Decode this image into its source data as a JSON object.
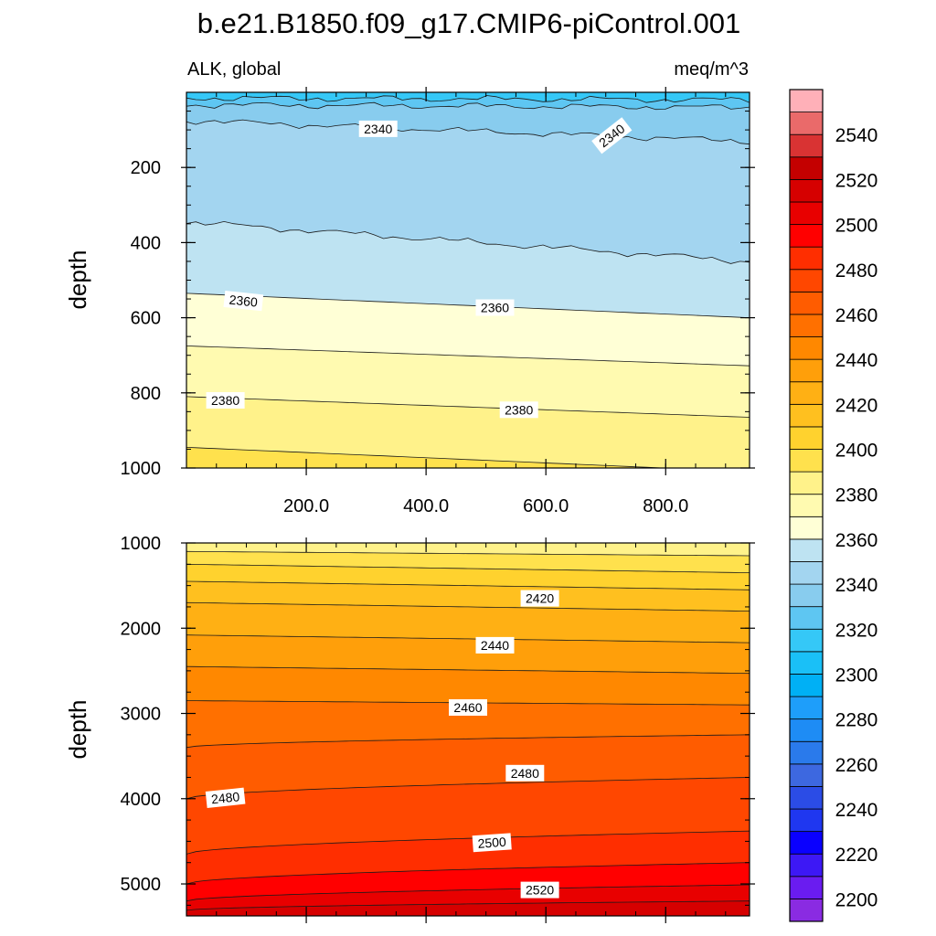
{
  "chart_data": {
    "type": "contour",
    "title": "b.e21.B1850.f09_g17.CMIP6-piControl.001",
    "variable_label": "ALK, global",
    "units_label": "meq/m^3",
    "x_range": [
      0,
      940
    ],
    "x_ticks": [
      200,
      400,
      600,
      800
    ],
    "x_tick_labels": [
      "200.0",
      "400.0",
      "600.0",
      "800.0"
    ],
    "colorbar": {
      "levels": [
        2200,
        2210,
        2220,
        2230,
        2240,
        2250,
        2260,
        2270,
        2280,
        2290,
        2300,
        2310,
        2320,
        2330,
        2340,
        2350,
        2360,
        2370,
        2380,
        2390,
        2400,
        2410,
        2420,
        2430,
        2440,
        2450,
        2460,
        2470,
        2480,
        2490,
        2500,
        2510,
        2520,
        2530,
        2540,
        2550
      ],
      "colors": [
        "#8A2BE2",
        "#6A1CF0",
        "#3D18F5",
        "#0A00FF",
        "#1F37F0",
        "#2B4CE6",
        "#3D68E0",
        "#2A7AEB",
        "#1E8CF5",
        "#1E9EFA",
        "#00B0F5",
        "#1AC0F7",
        "#35C8F7",
        "#5EC6F2",
        "#88CCEE",
        "#A3D5F0",
        "#BEE3F2",
        "#FFFFD6",
        "#FFFAB0",
        "#FFF28A",
        "#FFE14D",
        "#FFD22E",
        "#FFC01F",
        "#FFB014",
        "#FF9F0A",
        "#FF8800",
        "#FF7000",
        "#FF5C00",
        "#FF4700",
        "#FF2E00",
        "#FF0000",
        "#E80000",
        "#D60000",
        "#C40000",
        "#D93333",
        "#EA6A6A",
        "#FFB0B8"
      ],
      "tick_labels": [
        "2200",
        "2220",
        "2240",
        "2260",
        "2280",
        "2300",
        "2320",
        "2340",
        "2360",
        "2380",
        "2400",
        "2420",
        "2440",
        "2460",
        "2480",
        "2500",
        "2520",
        "2540"
      ]
    },
    "panels": [
      {
        "name": "upper",
        "ylabel": "depth",
        "y_range": [
          0,
          1000
        ],
        "y_ticks": [
          200,
          400,
          600,
          800,
          1000
        ],
        "y_tick_labels": [
          "200",
          "400",
          "600",
          "800",
          "1000"
        ],
        "y_minor_step": 50,
        "contours": [
          {
            "level": 2320,
            "depth_left": 15,
            "depth_right": 20,
            "jagged": true
          },
          {
            "level": 2330,
            "depth_left": 33,
            "depth_right": 40,
            "jagged": true
          },
          {
            "level": 2340,
            "depth_left": 75,
            "depth_right": 130,
            "jagged": true
          },
          {
            "level": 2350,
            "depth_left": 345,
            "depth_right": 450,
            "jagged": true
          },
          {
            "level": 2360,
            "depth_left": 535,
            "depth_right": 600,
            "jagged": false
          },
          {
            "level": 2370,
            "depth_left": 675,
            "depth_right": 728,
            "jagged": false
          },
          {
            "level": 2380,
            "depth_left": 810,
            "depth_right": 865,
            "jagged": false
          },
          {
            "level": 2390,
            "depth_left": 945,
            "depth_right": 1010,
            "jagged": false
          }
        ],
        "contour_labels": [
          {
            "text": "2340",
            "x": 320,
            "depth": 97,
            "angle": 0
          },
          {
            "text": "2340",
            "x": 710,
            "depth": 115,
            "angle": -38
          },
          {
            "text": "2360",
            "x": 95,
            "depth": 555,
            "angle": 6
          },
          {
            "text": "2360",
            "x": 515,
            "depth": 573,
            "angle": 0
          },
          {
            "text": "2380",
            "x": 65,
            "depth": 820,
            "angle": 0
          },
          {
            "text": "2380",
            "x": 555,
            "depth": 845,
            "angle": 0
          }
        ]
      },
      {
        "name": "lower",
        "ylabel": "depth",
        "y_range": [
          1000,
          5375
        ],
        "y_ticks": [
          1000,
          2000,
          3000,
          4000,
          5000
        ],
        "y_tick_labels": [
          "1000",
          "2000",
          "3000",
          "4000",
          "5000"
        ],
        "y_minor_step": 250,
        "contours": [
          {
            "level": 2390,
            "depth_left": 1100,
            "depth_right": 1150,
            "jagged": false
          },
          {
            "level": 2400,
            "depth_left": 1250,
            "depth_right": 1350,
            "jagged": false
          },
          {
            "level": 2410,
            "depth_left": 1450,
            "depth_right": 1550,
            "jagged": false
          },
          {
            "level": 2420,
            "depth_left": 1700,
            "depth_right": 1800,
            "jagged": false
          },
          {
            "level": 2430,
            "depth_left": 2080,
            "depth_right": 2170,
            "jagged": false
          },
          {
            "level": 2440,
            "depth_left": 2450,
            "depth_right": 2530,
            "jagged": false
          },
          {
            "level": 2450,
            "depth_left": 2850,
            "depth_right": 2900,
            "jagged": false
          },
          {
            "level": 2460,
            "depth_left": 3400,
            "depth_right": 3250,
            "jagged": false
          },
          {
            "level": 2470,
            "depth_left": 4000,
            "depth_right": 3750,
            "jagged": false
          },
          {
            "level": 2480,
            "depth_left": 4650,
            "depth_right": 4380,
            "jagged": false
          },
          {
            "level": 2490,
            "depth_left": 5000,
            "depth_right": 4750,
            "jagged": false
          },
          {
            "level": 2500,
            "depth_left": 5200,
            "depth_right": 5010,
            "jagged": false
          },
          {
            "level": 2510,
            "depth_left": 5310,
            "depth_right": 5200,
            "jagged": false
          }
        ],
        "contour_labels": [
          {
            "text": "2420",
            "x": 590,
            "depth": 1650,
            "angle": 0
          },
          {
            "text": "2440",
            "x": 515,
            "depth": 2200,
            "angle": 0
          },
          {
            "text": "2460",
            "x": 470,
            "depth": 2930,
            "angle": 0
          },
          {
            "text": "2480",
            "x": 65,
            "depth": 3990,
            "angle": -6
          },
          {
            "text": "2480",
            "x": 565,
            "depth": 3700,
            "angle": 0
          },
          {
            "text": "2500",
            "x": 510,
            "depth": 4515,
            "angle": -4
          },
          {
            "text": "2520",
            "x": 590,
            "depth": 5070,
            "angle": 0
          }
        ]
      }
    ]
  }
}
